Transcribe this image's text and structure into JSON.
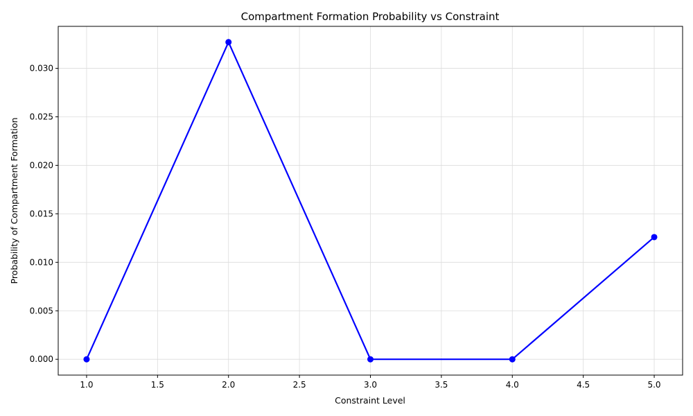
{
  "chart_data": {
    "type": "line",
    "title": "Compartment Formation Probability vs Constraint",
    "xlabel": "Constraint Level",
    "ylabel": "Probability of Compartment Formation",
    "xlim": [
      0.8,
      5.2
    ],
    "ylim": [
      -0.00163,
      0.03433
    ],
    "x_ticks": [
      1.0,
      1.5,
      2.0,
      2.5,
      3.0,
      3.5,
      4.0,
      4.5,
      5.0
    ],
    "x_tick_labels": [
      "1.0",
      "1.5",
      "2.0",
      "2.5",
      "3.0",
      "3.5",
      "4.0",
      "4.5",
      "5.0"
    ],
    "y_ticks": [
      0.0,
      0.005,
      0.01,
      0.015,
      0.02,
      0.025,
      0.03
    ],
    "y_tick_labels": [
      "0.000",
      "0.005",
      "0.010",
      "0.015",
      "0.020",
      "0.025",
      "0.030"
    ],
    "grid": true,
    "series": [
      {
        "color": "#0000ff",
        "marker": "circle",
        "x": [
          1,
          2,
          3,
          4,
          5
        ],
        "y": [
          0.0,
          0.0327,
          0.0,
          0.0,
          0.0126
        ]
      }
    ]
  }
}
